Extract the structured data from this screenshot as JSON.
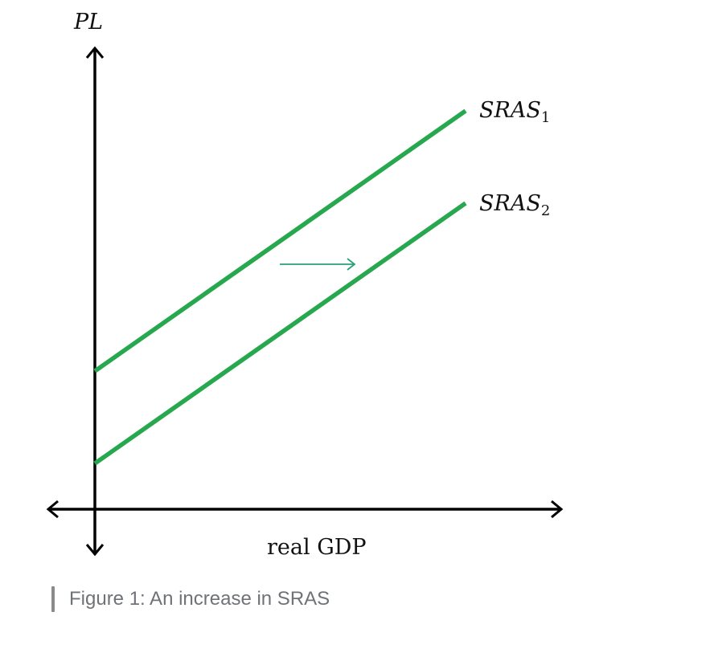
{
  "diagram": {
    "y_axis_label": "PL",
    "x_axis_label": "real GDP",
    "curves": [
      {
        "name": "SRAS",
        "subscript": "1"
      },
      {
        "name": "SRAS",
        "subscript": "2"
      }
    ],
    "shift_direction": "right",
    "colors": {
      "axes": "#000000",
      "curves": "#27a84f",
      "shift_arrow": "#2aa07a"
    }
  },
  "caption": {
    "text": "Figure 1: An increase in SRAS"
  }
}
